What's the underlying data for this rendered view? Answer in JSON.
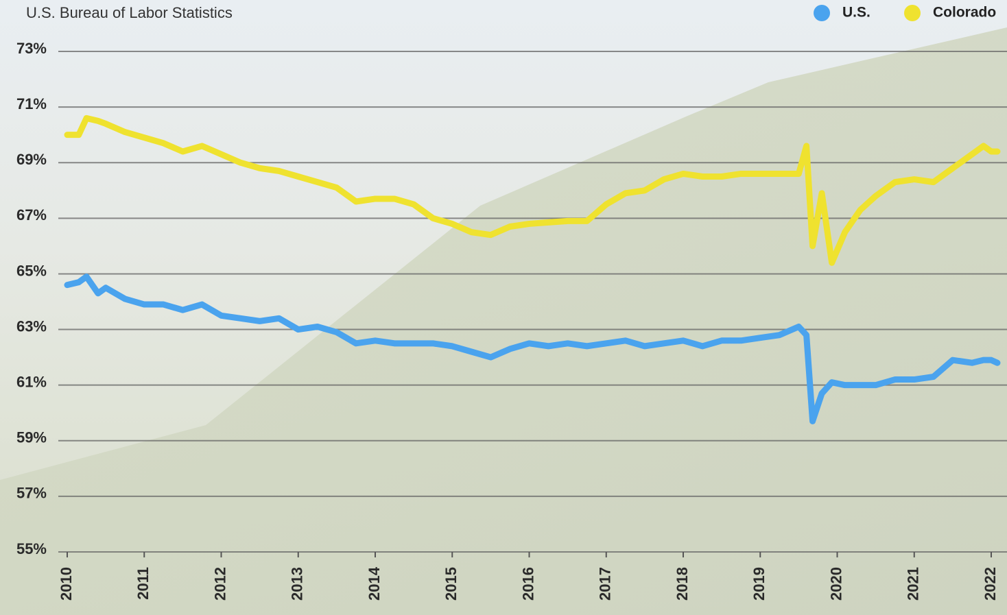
{
  "chart_data": {
    "type": "line",
    "subtitle": "U.S. Bureau of Labor Statistics",
    "x": [
      2010.0,
      2010.15,
      2010.25,
      2010.4,
      2010.5,
      2010.75,
      2011.0,
      2011.25,
      2011.5,
      2011.75,
      2012.0,
      2012.25,
      2012.5,
      2012.75,
      2013.0,
      2013.25,
      2013.5,
      2013.75,
      2014.0,
      2014.25,
      2014.5,
      2014.75,
      2015.0,
      2015.25,
      2015.5,
      2015.75,
      2016.0,
      2016.25,
      2016.5,
      2016.75,
      2017.0,
      2017.25,
      2017.5,
      2017.75,
      2018.0,
      2018.25,
      2018.5,
      2018.75,
      2019.0,
      2019.25,
      2019.5,
      2019.6,
      2019.68,
      2019.8,
      2019.93,
      2020.1,
      2020.3,
      2020.5,
      2020.75,
      2021.0,
      2021.25,
      2021.5,
      2021.75,
      2021.9,
      2022.0,
      2022.08
    ],
    "series": [
      {
        "name": "U.S.",
        "color": "#4aa3ee",
        "values": [
          64.6,
          64.7,
          64.9,
          64.3,
          64.5,
          64.1,
          63.9,
          63.9,
          63.7,
          63.9,
          63.5,
          63.4,
          63.3,
          63.4,
          63.0,
          63.1,
          62.9,
          62.5,
          62.6,
          62.5,
          62.5,
          62.5,
          62.4,
          62.2,
          62.0,
          62.3,
          62.5,
          62.4,
          62.5,
          62.4,
          62.5,
          62.6,
          62.4,
          62.5,
          62.6,
          62.4,
          62.6,
          62.6,
          62.7,
          62.8,
          63.1,
          62.8,
          59.7,
          60.7,
          61.1,
          61.0,
          61.0,
          61.0,
          61.2,
          61.2,
          61.3,
          61.9,
          61.8,
          61.9,
          61.9,
          61.8
        ]
      },
      {
        "name": "Colorado",
        "color": "#efe22f",
        "values": [
          70.0,
          70.0,
          70.6,
          70.5,
          70.4,
          70.1,
          69.9,
          69.7,
          69.4,
          69.6,
          69.3,
          69.0,
          68.8,
          68.7,
          68.5,
          68.3,
          68.1,
          67.6,
          67.7,
          67.7,
          67.5,
          67.0,
          66.8,
          66.5,
          66.4,
          66.7,
          66.8,
          66.85,
          66.9,
          66.9,
          67.5,
          67.9,
          68.0,
          68.4,
          68.6,
          68.5,
          68.5,
          68.6,
          68.6,
          68.6,
          68.6,
          69.6,
          66.0,
          67.9,
          65.4,
          66.5,
          67.3,
          67.8,
          68.3,
          68.4,
          68.3,
          68.8,
          69.3,
          69.6,
          69.4,
          69.4
        ]
      }
    ],
    "xlim": [
      2010,
      2022.1
    ],
    "xticks": [
      2010,
      2011,
      2012,
      2013,
      2014,
      2015,
      2016,
      2017,
      2018,
      2019,
      2020,
      2021,
      2022
    ],
    "ylim": [
      55,
      73
    ],
    "yticks": [
      {
        "value": 55,
        "label": "55%"
      },
      {
        "value": 57,
        "label": "57%"
      },
      {
        "value": 59,
        "label": "59%"
      },
      {
        "value": 61,
        "label": "61%"
      },
      {
        "value": 63,
        "label": "63%"
      },
      {
        "value": 65,
        "label": "65%"
      },
      {
        "value": 67,
        "label": "67%"
      },
      {
        "value": 69,
        "label": "69%"
      },
      {
        "value": 71,
        "label": "71%"
      },
      {
        "value": 73,
        "label": "73%"
      }
    ],
    "grid": true,
    "legend": "top-right"
  }
}
